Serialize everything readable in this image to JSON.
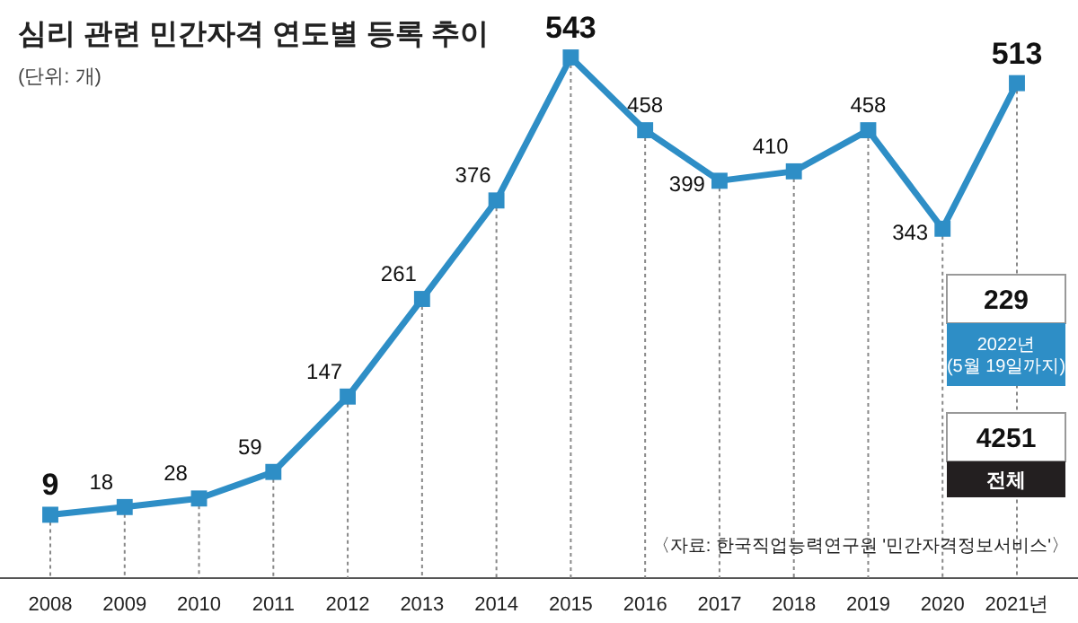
{
  "chart_data": {
    "type": "line",
    "title": "심리 관련 민간자격 연도별 등록 추이",
    "subtitle": "(단위: 개)",
    "categories": [
      "2008",
      "2009",
      "2010",
      "2011",
      "2012",
      "2013",
      "2014",
      "2015",
      "2016",
      "2017",
      "2018",
      "2019",
      "2020",
      "2021년"
    ],
    "series": [
      {
        "color": "#2e8ec6",
        "values": [
          9,
          18,
          28,
          59,
          147,
          261,
          376,
          543,
          458,
          399,
          410,
          458,
          343,
          513
        ]
      }
    ],
    "marker": "square",
    "data_labels": true,
    "grid": "x",
    "annotations": [
      "229",
      "2022년\n(5월 19일까지)",
      "4251",
      "전체",
      "〈자료: 한국직업능력연구원 '민간자격정보서비스'〉"
    ]
  }
}
